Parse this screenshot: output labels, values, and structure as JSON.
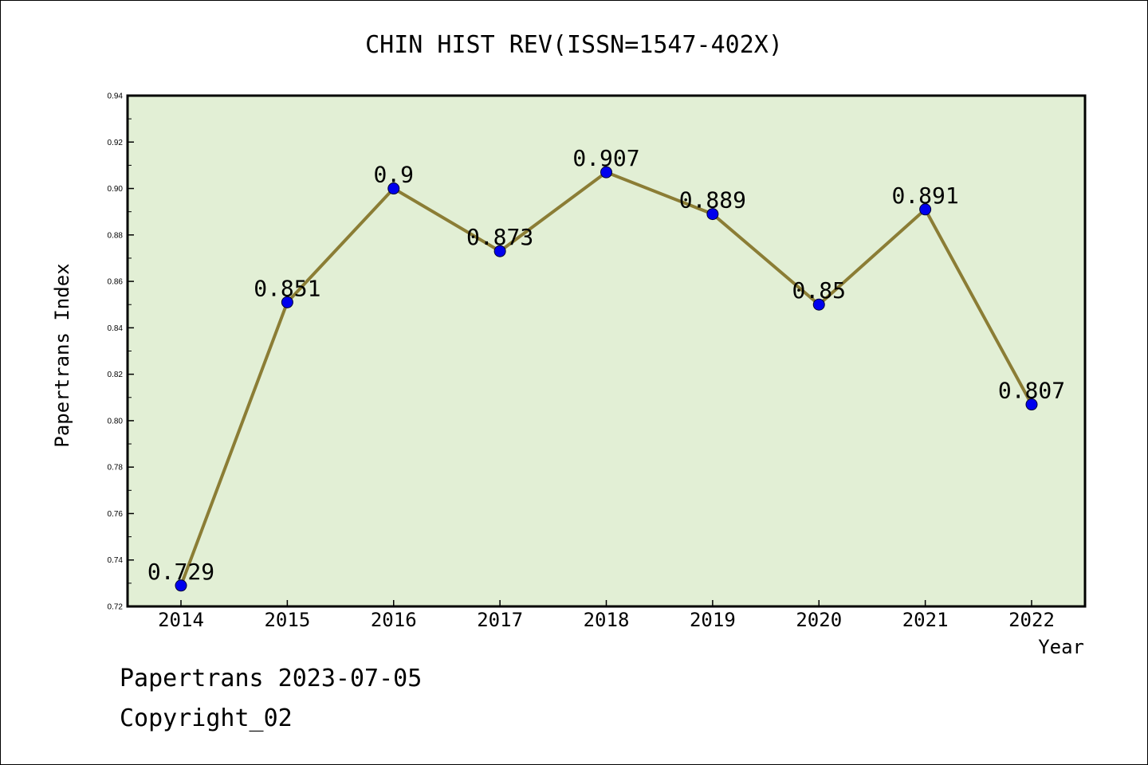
{
  "chart_data": {
    "type": "line",
    "title": "CHIN HIST REV(ISSN=1547-402X)",
    "xlabel": "Year",
    "ylabel": "Papertrans Index",
    "categories": [
      "2014",
      "2015",
      "2016",
      "2017",
      "2018",
      "2019",
      "2020",
      "2021",
      "2022"
    ],
    "values": [
      0.729,
      0.851,
      0.9,
      0.873,
      0.907,
      0.889,
      0.85,
      0.891,
      0.807
    ],
    "data_labels": [
      "0.729",
      "0.851",
      "0.9",
      "0.873",
      "0.907",
      "0.889",
      "0.85",
      "0.891",
      "0.807"
    ],
    "ylim": [
      0.72,
      0.94
    ],
    "yticks": [
      "0.72",
      "0.74",
      "0.76",
      "0.78",
      "0.80",
      "0.82",
      "0.84",
      "0.86",
      "0.88",
      "0.90",
      "0.92",
      "0.94"
    ],
    "grid": false,
    "plot_background": "#e2efd5",
    "line_color": "#8b7d35",
    "marker_color": "#0000ee"
  },
  "footer": {
    "line1": "Papertrans 2023-07-05",
    "line2": "Copyright_02"
  }
}
